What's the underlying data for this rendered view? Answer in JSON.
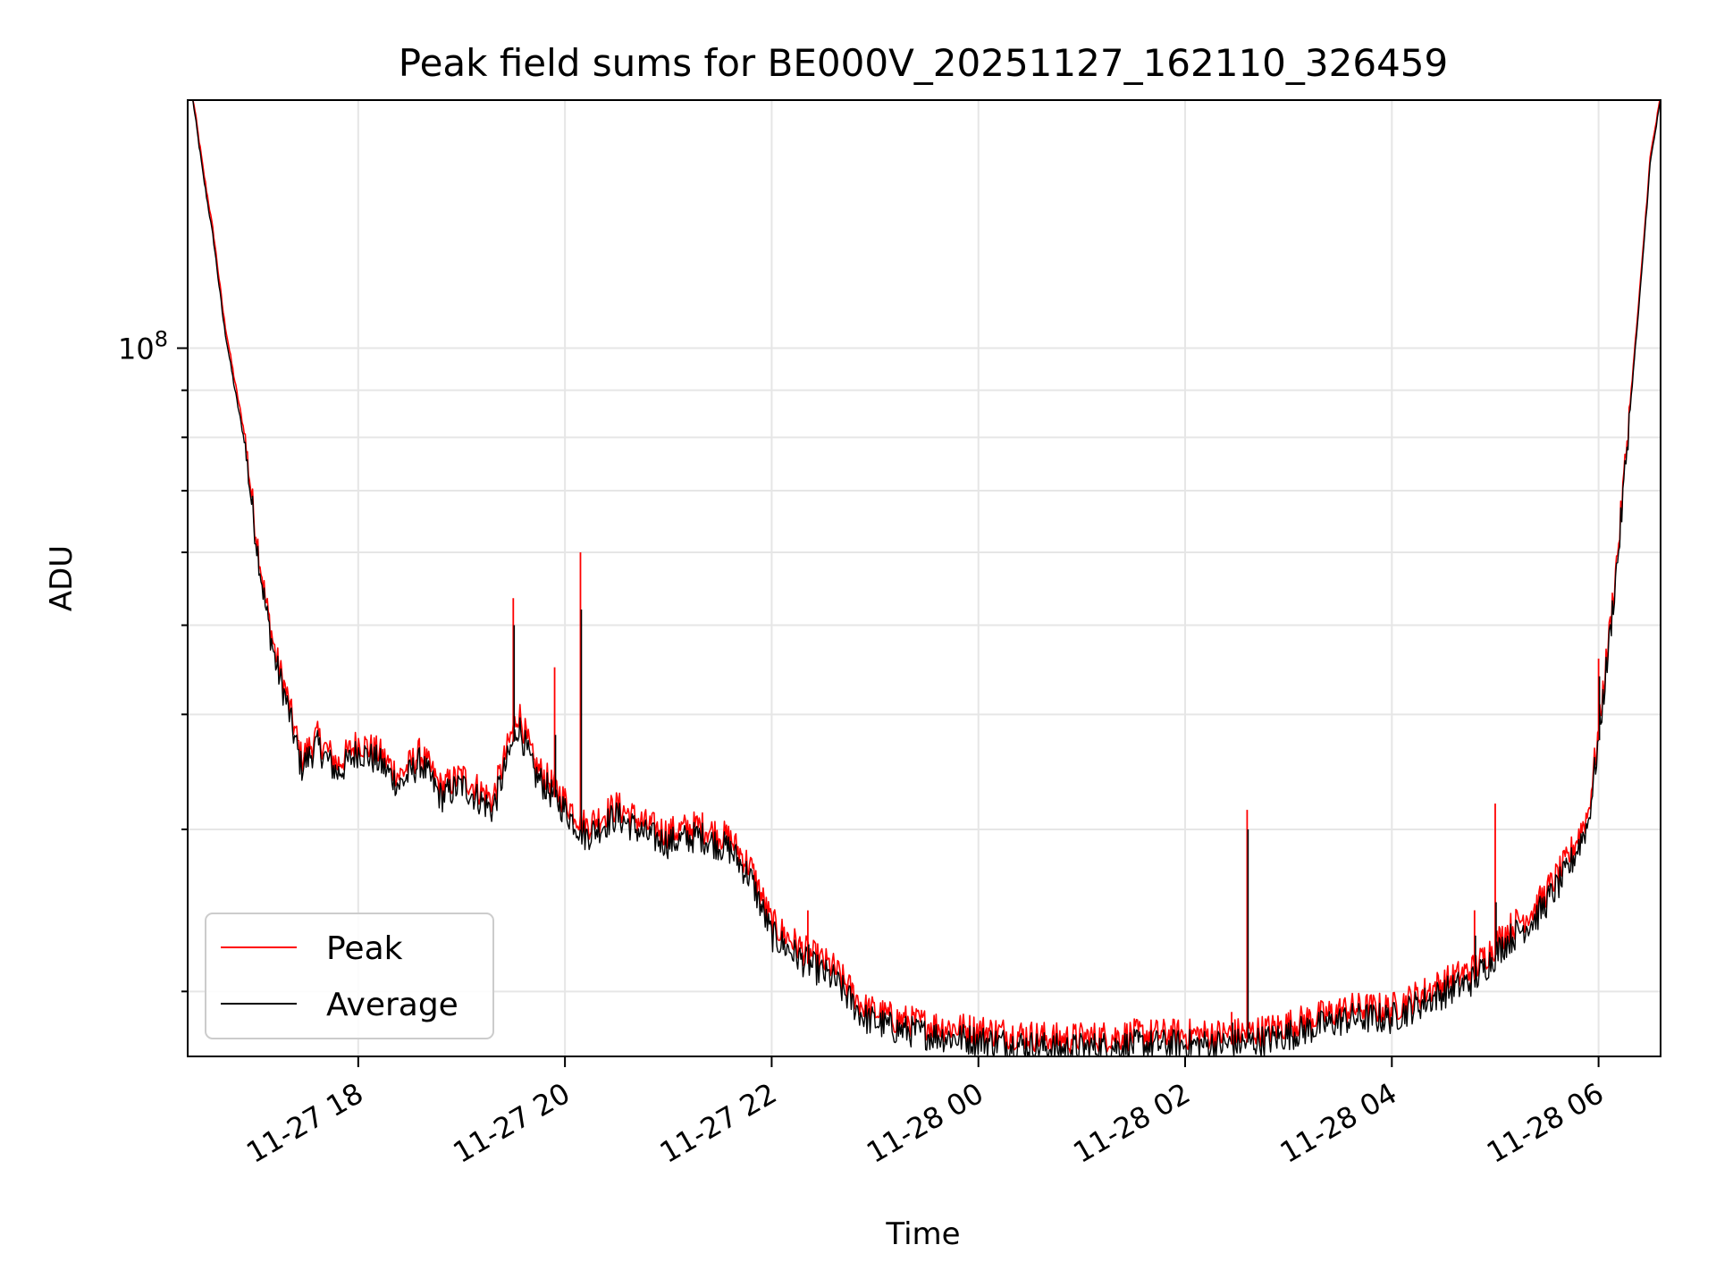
{
  "chart_data": {
    "type": "line",
    "title": "Peak field sums for BE000V_20251127_162110_326459",
    "xlabel": "Time",
    "ylabel": "ADU",
    "yscale": "log",
    "ylim": [
      17000000,
      186000000
    ],
    "xlim_hours": [
      16.35,
      30.6
    ],
    "grid": true,
    "x_ticks": [
      {
        "label": "11-27 18",
        "hour": 18
      },
      {
        "label": "11-27 20",
        "hour": 20
      },
      {
        "label": "11-27 22",
        "hour": 22
      },
      {
        "label": "11-28 00",
        "hour": 24
      },
      {
        "label": "11-28 02",
        "hour": 26
      },
      {
        "label": "11-28 04",
        "hour": 28
      },
      {
        "label": "11-28 06",
        "hour": 30
      }
    ],
    "y_major_ticks": [
      {
        "value": 100000000,
        "base": "10",
        "exponent": "8"
      }
    ],
    "legend": {
      "position": "lower-left",
      "entries": [
        "Peak",
        "Average"
      ]
    },
    "x_unit": "hours since 2025-11-27 00:00",
    "series": [
      {
        "name": "Peak",
        "color": "#ff0000",
        "x": [
          16.4,
          16.5,
          16.6,
          16.7,
          16.8,
          16.9,
          17.0,
          17.1,
          17.2,
          17.3,
          17.45,
          17.6,
          17.8,
          18.0,
          18.2,
          18.4,
          18.6,
          18.8,
          19.0,
          19.3,
          19.55,
          19.7,
          19.9,
          20.2,
          20.5,
          20.8,
          21.0,
          21.3,
          21.6,
          21.8,
          22.0,
          22.3,
          22.6,
          22.9,
          23.2,
          23.6,
          24.0,
          24.4,
          24.8,
          25.2,
          25.6,
          26.0,
          26.4,
          26.8,
          27.2,
          27.6,
          28.0,
          28.4,
          28.8,
          29.1,
          29.4,
          29.7,
          29.9,
          30.0,
          30.1,
          30.2,
          30.3,
          30.4,
          30.5,
          30.6
        ],
        "y": [
          186000000,
          155000000,
          132000000,
          107000000,
          92000000,
          80000000,
          64000000,
          53000000,
          46000000,
          42000000,
          35500000,
          37500000,
          35000000,
          37000000,
          36000000,
          34000000,
          36000000,
          33000000,
          34000000,
          32000000,
          40000000,
          35000000,
          33000000,
          30000000,
          31500000,
          30000000,
          29500000,
          30000000,
          29000000,
          27000000,
          23500000,
          22000000,
          21000000,
          19000000,
          18500000,
          18200000,
          18000000,
          17800000,
          17600000,
          17700000,
          17800000,
          17800000,
          17800000,
          18000000,
          18500000,
          19000000,
          19000000,
          20000000,
          21000000,
          23000000,
          24500000,
          27500000,
          31000000,
          38000000,
          48000000,
          62000000,
          85000000,
          115000000,
          160000000,
          186000000
        ]
      },
      {
        "name": "Average",
        "color": "#000000",
        "x": [
          16.4,
          16.5,
          16.6,
          16.7,
          16.8,
          16.9,
          17.0,
          17.1,
          17.2,
          17.3,
          17.45,
          17.6,
          17.8,
          18.0,
          18.2,
          18.4,
          18.6,
          18.8,
          19.0,
          19.3,
          19.55,
          19.7,
          19.9,
          20.2,
          20.5,
          20.8,
          21.0,
          21.3,
          21.6,
          21.8,
          22.0,
          22.3,
          22.6,
          22.9,
          23.2,
          23.6,
          24.0,
          24.4,
          24.8,
          25.2,
          25.6,
          26.0,
          26.4,
          26.8,
          27.2,
          27.6,
          28.0,
          28.4,
          28.8,
          29.1,
          29.4,
          29.7,
          29.9,
          30.0,
          30.1,
          30.2,
          30.3,
          30.4,
          30.5,
          30.6
        ],
        "y": [
          186000000,
          154000000,
          131000000,
          106000000,
          91000000,
          79000000,
          63500000,
          52500000,
          45500000,
          41500000,
          35000000,
          37000000,
          34500000,
          36500000,
          35500000,
          33500000,
          35500000,
          32500000,
          33500000,
          31500000,
          39000000,
          34500000,
          32500000,
          29500000,
          31000000,
          29500000,
          29000000,
          29500000,
          28500000,
          26500000,
          23000000,
          21600000,
          20600000,
          18700000,
          18200000,
          17900000,
          17700000,
          17500000,
          17300000,
          17400000,
          17500000,
          17500000,
          17500000,
          17700000,
          18200000,
          18700000,
          18700000,
          19700000,
          20600000,
          22600000,
          24100000,
          27000000,
          30500000,
          37500000,
          47500000,
          61500000,
          84500000,
          114000000,
          159000000,
          186000000
        ]
      }
    ],
    "spikes": [
      {
        "hour": 19.5,
        "peak": 53500000,
        "average": 50000000
      },
      {
        "hour": 19.9,
        "peak": 45000000,
        "average": 38000000
      },
      {
        "hour": 20.15,
        "peak": 60000000,
        "average": 52000000
      },
      {
        "hour": 22.35,
        "peak": 24500000,
        "average": 22500000
      },
      {
        "hour": 26.45,
        "peak": 19000000,
        "average": 18500000
      },
      {
        "hour": 26.6,
        "peak": 31500000,
        "average": 30000000
      },
      {
        "hour": 28.8,
        "peak": 24500000,
        "average": 23000000
      },
      {
        "hour": 29.0,
        "peak": 32000000,
        "average": 25000000
      },
      {
        "hour": 30.0,
        "peak": 46000000,
        "average": 44000000
      }
    ]
  }
}
